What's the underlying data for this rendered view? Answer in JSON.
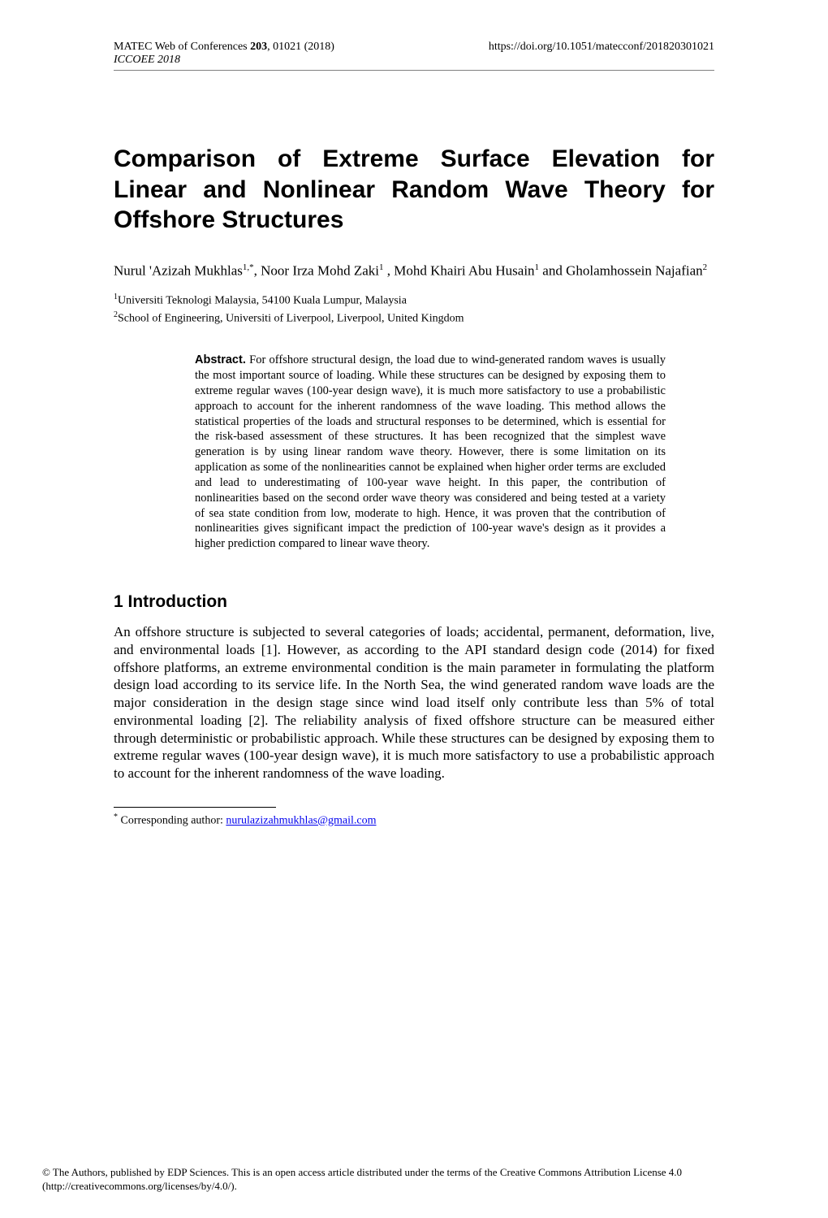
{
  "header": {
    "journal_line": "MATEC Web of Conferences ",
    "volume_bold": "203",
    "issue_pages": ", 01021 (2018)",
    "conference_italic": "ICCOEE 2018",
    "doi_url": "https://doi.org/10.1051/matecconf/201820301021"
  },
  "title": "Comparison of Extreme Surface Elevation for Linear and Nonlinear Random Wave Theory for Offshore Structures",
  "authors": {
    "a1_name": "Nurul 'Azizah Mukhlas",
    "a1_sup": "1,*",
    "a2_name": "Noor Irza Mohd Zaki",
    "a2_sup": "1",
    "a3_name": "Mohd Khairi Abu Husain",
    "a3_sup": "1",
    "a4_name": "Gholamhossein Najafian",
    "a4_sup": "2"
  },
  "affiliations": {
    "aff1_num": "1",
    "aff1_text": "Universiti Teknologi Malaysia, 54100 Kuala Lumpur, Malaysia",
    "aff2_num": "2",
    "aff2_text": "School of Engineering, Universiti of Liverpool, Liverpool, United Kingdom"
  },
  "abstract": {
    "label": "Abstract.",
    "text": " For offshore structural design, the load due to wind-generated random waves is usually the most important source of loading. While these structures can be designed by exposing them to extreme regular waves (100-year design wave), it is much more satisfactory to use a probabilistic approach to account for the inherent randomness of the wave loading. This method allows the statistical properties of the loads and structural responses to be determined, which is essential for the risk-based assessment of these structures. It has been recognized that the simplest wave generation is by using linear random wave theory. However, there is some limitation on its application as some of the nonlinearities cannot be explained when higher order terms are excluded and lead to underestimating of 100-year wave height. In this paper, the contribution of nonlinearities based on the second order wave theory was considered and being tested at a variety of sea state condition from low, moderate to high. Hence, it was proven that the contribution of nonlinearities gives significant impact the prediction of 100-year wave's design as it provides a higher prediction compared to linear wave theory."
  },
  "section1": {
    "heading": "1 Introduction",
    "paragraph": "An offshore structure is subjected to several categories of loads; accidental, permanent, deformation, live, and environmental loads [1]. However, as according to the API standard design code (2014) for fixed offshore platforms, an extreme environmental condition is the main parameter in formulating the platform design load according to its service life. In the North Sea, the wind generated random wave loads are the major consideration in the design stage since wind load itself only contribute less than 5% of total environmental loading [2]. The reliability analysis of fixed offshore structure can be measured either through deterministic or probabilistic approach. While these structures can be designed by exposing them to extreme regular waves (100-year design wave), it is much more satisfactory to use a probabilistic approach to account for the inherent randomness of the wave loading."
  },
  "footnote": {
    "marker": "*",
    "label": " Corresponding author: ",
    "email": "nurulazizahmukhlas@gmail.com"
  },
  "license": "© The Authors, published by EDP Sciences. This is an open access article distributed under the terms of the Creative Commons Attribution License 4.0 (http://creativecommons.org/licenses/by/4.0/)."
}
